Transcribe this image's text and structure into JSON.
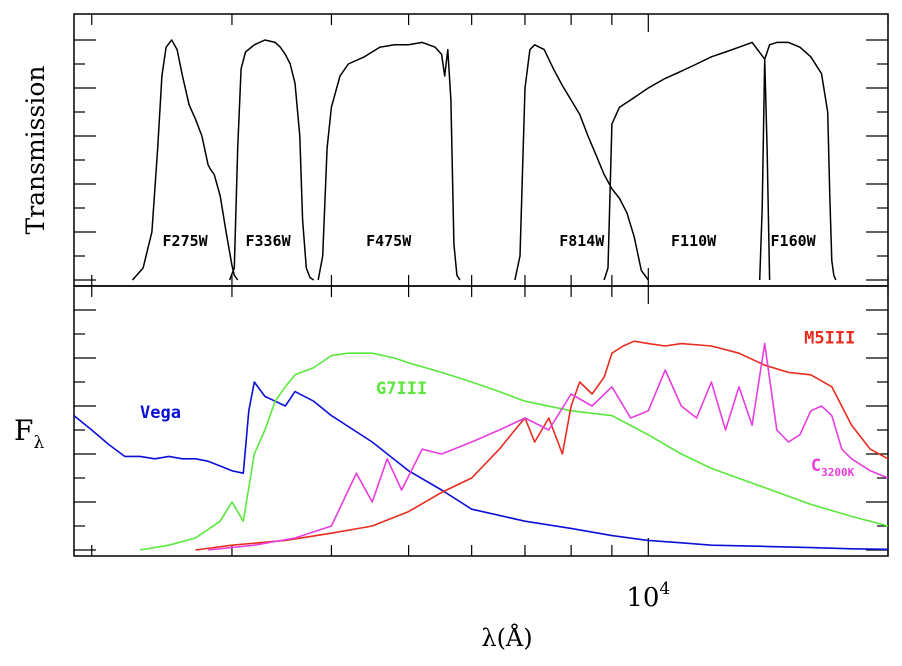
{
  "chart_data": [
    {
      "type": "line",
      "panel": "top",
      "ylabel": "Transmission",
      "x_scale": "log",
      "xlim": [
        1900,
        20000
      ],
      "ylim": [
        0,
        1.0
      ],
      "grid": false,
      "series": [
        {
          "name": "F275W",
          "x": [
            2250,
            2320,
            2380,
            2420,
            2450,
            2480,
            2520,
            2560,
            2600,
            2650,
            2700,
            2750,
            2800,
            2820,
            2850,
            2900,
            2950,
            3000,
            3020,
            3050
          ],
          "y": [
            0.0,
            0.05,
            0.2,
            0.55,
            0.85,
            0.97,
            1.0,
            0.96,
            0.85,
            0.73,
            0.67,
            0.6,
            0.48,
            0.46,
            0.44,
            0.35,
            0.2,
            0.06,
            0.02,
            0.0
          ]
        },
        {
          "name": "F336W",
          "x": [
            2980,
            3020,
            3050,
            3080,
            3120,
            3200,
            3300,
            3400,
            3450,
            3500,
            3550,
            3600,
            3650,
            3680,
            3720,
            3760,
            3800
          ],
          "y": [
            0.0,
            0.05,
            0.55,
            0.88,
            0.95,
            0.98,
            1.0,
            0.99,
            0.97,
            0.94,
            0.9,
            0.82,
            0.6,
            0.25,
            0.05,
            0.01,
            0.0
          ]
        },
        {
          "name": "F475W",
          "x": [
            3850,
            3900,
            3950,
            4000,
            4100,
            4200,
            4400,
            4600,
            4800,
            5000,
            5200,
            5400,
            5500,
            5550,
            5600,
            5650,
            5700,
            5750,
            5800
          ],
          "y": [
            0.0,
            0.1,
            0.55,
            0.72,
            0.85,
            0.9,
            0.93,
            0.97,
            0.98,
            0.98,
            0.99,
            0.97,
            0.94,
            0.85,
            0.96,
            0.75,
            0.15,
            0.02,
            0.0
          ]
        },
        {
          "name": "F814W",
          "x": [
            6800,
            6900,
            7000,
            7100,
            7200,
            7400,
            7600,
            7800,
            8000,
            8200,
            8400,
            8600,
            8800,
            9000,
            9200,
            9400,
            9600,
            9800,
            10000
          ],
          "y": [
            0.0,
            0.1,
            0.8,
            0.96,
            0.98,
            0.96,
            0.88,
            0.81,
            0.75,
            0.69,
            0.6,
            0.52,
            0.44,
            0.38,
            0.34,
            0.28,
            0.18,
            0.04,
            0.0
          ]
        },
        {
          "name": "F110W",
          "x": [
            8800,
            8900,
            9000,
            9200,
            9500,
            10000,
            10500,
            11000,
            11500,
            12000,
            12500,
            13000,
            13500,
            14000,
            14100,
            14200
          ],
          "y": [
            0.0,
            0.05,
            0.65,
            0.72,
            0.75,
            0.8,
            0.84,
            0.87,
            0.9,
            0.93,
            0.95,
            0.97,
            0.99,
            0.92,
            0.55,
            0.0
          ]
        },
        {
          "name": "F160W",
          "x": [
            13800,
            13900,
            14000,
            14200,
            14500,
            15000,
            15500,
            16000,
            16500,
            16800,
            16900,
            17000,
            17100,
            17200
          ],
          "y": [
            0.0,
            0.3,
            0.92,
            0.98,
            0.99,
            0.99,
            0.97,
            0.93,
            0.86,
            0.7,
            0.35,
            0.08,
            0.02,
            0.0
          ]
        }
      ],
      "filter_labels": [
        "F275W",
        "F336W",
        "F475W",
        "F814W",
        "F110W",
        "F160W"
      ]
    },
    {
      "type": "line",
      "panel": "bottom",
      "ylabel": "F",
      "ylabel_subscript": "λ",
      "xlabel": "λ(Å)",
      "x_scale": "log",
      "xlim": [
        1900,
        20000
      ],
      "ylim": [
        0,
        1.0
      ],
      "x_tick_labels": [
        {
          "value": 10000,
          "base": "10",
          "exponent": "4"
        }
      ],
      "grid": false,
      "series": [
        {
          "name": "Vega",
          "color": "#0b10d8",
          "x": [
            1900,
            2000,
            2100,
            2200,
            2300,
            2400,
            2500,
            2600,
            2700,
            2800,
            2900,
            3000,
            3100,
            3150,
            3200,
            3300,
            3400,
            3500,
            3600,
            3800,
            4000,
            4500,
            5000,
            5500,
            6000,
            7000,
            8000,
            9000,
            10000,
            11000,
            12000,
            14000,
            16000,
            18000,
            20000
          ],
          "y": [
            0.56,
            0.5,
            0.44,
            0.39,
            0.39,
            0.38,
            0.39,
            0.38,
            0.38,
            0.37,
            0.35,
            0.33,
            0.32,
            0.58,
            0.7,
            0.64,
            0.62,
            0.6,
            0.66,
            0.62,
            0.56,
            0.45,
            0.33,
            0.25,
            0.17,
            0.12,
            0.09,
            0.06,
            0.04,
            0.03,
            0.02,
            0.015,
            0.01,
            0.005,
            0.003
          ]
        },
        {
          "name": "G7III",
          "color": "#5ae83c",
          "x": [
            2300,
            2500,
            2700,
            2900,
            3000,
            3100,
            3200,
            3300,
            3400,
            3500,
            3600,
            3800,
            4000,
            4200,
            4500,
            4800,
            5000,
            5500,
            6000,
            6500,
            7000,
            8000,
            9000,
            10000,
            11000,
            12000,
            14000,
            16000,
            18000,
            20000
          ],
          "y": [
            0.0,
            0.02,
            0.05,
            0.12,
            0.2,
            0.12,
            0.4,
            0.5,
            0.62,
            0.68,
            0.73,
            0.76,
            0.81,
            0.82,
            0.82,
            0.8,
            0.78,
            0.74,
            0.7,
            0.66,
            0.62,
            0.58,
            0.56,
            0.48,
            0.4,
            0.34,
            0.26,
            0.19,
            0.14,
            0.1
          ]
        },
        {
          "name": "M5III",
          "color": "#e82c1e",
          "x": [
            2700,
            3000,
            3500,
            4000,
            4500,
            5000,
            5500,
            6000,
            6500,
            6800,
            7000,
            7200,
            7500,
            7800,
            8000,
            8200,
            8500,
            8800,
            9000,
            9300,
            9600,
            10000,
            10500,
            11000,
            12000,
            13000,
            14000,
            15000,
            16000,
            17000,
            18000,
            19000,
            20000
          ],
          "y": [
            0.0,
            0.02,
            0.04,
            0.07,
            0.1,
            0.16,
            0.24,
            0.3,
            0.42,
            0.5,
            0.55,
            0.45,
            0.55,
            0.4,
            0.6,
            0.7,
            0.65,
            0.72,
            0.82,
            0.85,
            0.87,
            0.86,
            0.85,
            0.86,
            0.85,
            0.82,
            0.77,
            0.74,
            0.73,
            0.68,
            0.52,
            0.42,
            0.38
          ]
        },
        {
          "name": "C",
          "name_subscript": "3200K",
          "color": "#e83ee0",
          "x": [
            2800,
            3200,
            3600,
            4000,
            4300,
            4500,
            4700,
            4900,
            5200,
            5500,
            6000,
            6500,
            7000,
            7500,
            8000,
            8500,
            9000,
            9500,
            10000,
            10500,
            11000,
            11500,
            12000,
            12500,
            13000,
            13500,
            14000,
            14500,
            15000,
            15500,
            16000,
            16500,
            17000,
            17500,
            18000,
            19000,
            20000
          ],
          "y": [
            0.0,
            0.02,
            0.05,
            0.1,
            0.32,
            0.2,
            0.38,
            0.25,
            0.42,
            0.4,
            0.45,
            0.5,
            0.55,
            0.5,
            0.65,
            0.6,
            0.68,
            0.55,
            0.58,
            0.75,
            0.6,
            0.55,
            0.7,
            0.5,
            0.68,
            0.52,
            0.86,
            0.5,
            0.45,
            0.48,
            0.58,
            0.6,
            0.56,
            0.42,
            0.38,
            0.33,
            0.3
          ]
        }
      ],
      "star_labels": [
        "Vega",
        "G7III",
        "M5III"
      ]
    }
  ]
}
